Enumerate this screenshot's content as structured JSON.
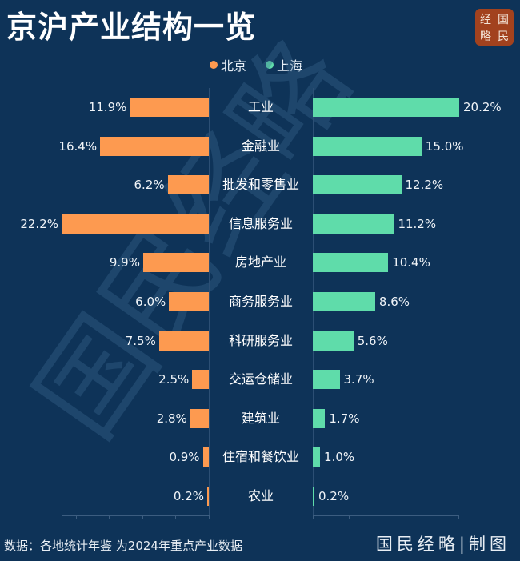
{
  "header": {
    "title": "京沪产业结构一览",
    "logo_chars": [
      "经",
      "国",
      "略",
      "民"
    ]
  },
  "legend": [
    {
      "label": "北京",
      "color": "#fd9a50"
    },
    {
      "label": "上海",
      "color": "#5fdcaa"
    }
  ],
  "colors": {
    "background": "#0e3358",
    "beijing": "#fd9a50",
    "shanghai": "#5fdcaa",
    "logo_bg": "#a2421e"
  },
  "footer": {
    "source": "数据：各地统计年鉴 为2024年重点产业数据",
    "brand": "国民经略|制图"
  },
  "watermark": "国民经略",
  "chart_data": {
    "type": "bar",
    "orientation": "horizontal-butterfly",
    "title": "京沪产业结构一览",
    "categories": [
      "工业",
      "金融业",
      "批发和零售业",
      "信息服务业",
      "房地产业",
      "商务服务业",
      "科研服务业",
      "交运仓储业",
      "建筑业",
      "住宿和餐饮业",
      "农业"
    ],
    "series": [
      {
        "name": "北京",
        "values": [
          11.9,
          16.4,
          6.2,
          22.2,
          9.9,
          6.0,
          7.5,
          2.5,
          2.8,
          0.9,
          0.2
        ],
        "labels": [
          "11.9%",
          "16.4%",
          "6.2%",
          "22.2%",
          "9.9%",
          "6.0%",
          "7.5%",
          "2.5%",
          "2.8%",
          "0.9%",
          "0.2%"
        ]
      },
      {
        "name": "上海",
        "values": [
          20.2,
          15.0,
          12.2,
          11.2,
          10.4,
          8.6,
          5.6,
          3.7,
          1.7,
          1.0,
          0.2
        ],
        "labels": [
          "20.2%",
          "15.0%",
          "12.2%",
          "11.2%",
          "10.4%",
          "8.6%",
          "5.6%",
          "3.7%",
          "1.7%",
          "1.0%",
          "0.2%"
        ]
      }
    ],
    "unit": "%",
    "xlabel": "",
    "ylabel": "",
    "legend_position": "top-center",
    "grid": false,
    "source": "数据：各地统计年鉴 为2024年重点产业数据"
  }
}
